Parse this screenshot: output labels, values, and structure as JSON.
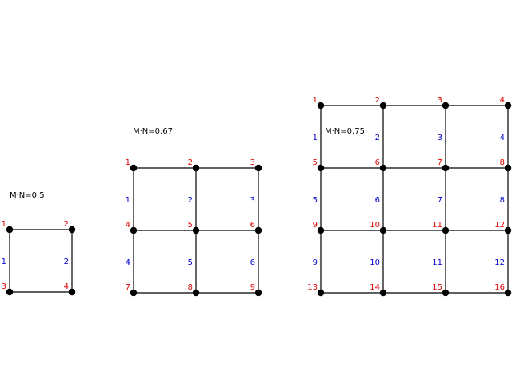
{
  "colors": {
    "background": "#ffffff",
    "edge": "#000000",
    "node": "#000000",
    "node_label": "#e00000",
    "edge_label": "#0000cc"
  },
  "diagrams": [
    {
      "caption": "M·N=0.5",
      "cols": 2,
      "rows": 2,
      "node_labels": [
        "1",
        "2",
        "3",
        "4"
      ],
      "edge_labels": [
        "1",
        "2"
      ]
    },
    {
      "caption": "M·N=0.67",
      "cols": 3,
      "rows": 3,
      "node_labels": [
        "1",
        "2",
        "3",
        "4",
        "5",
        "6",
        "7",
        "8",
        "9"
      ],
      "edge_labels": [
        "1",
        "2",
        "3",
        "4",
        "5",
        "6"
      ]
    },
    {
      "caption": "M·N=0.75",
      "cols": 4,
      "rows": 4,
      "node_labels": [
        "1",
        "2",
        "3",
        "4",
        "5",
        "6",
        "7",
        "8",
        "9",
        "10",
        "11",
        "12",
        "13",
        "14",
        "15",
        "16"
      ],
      "edge_labels": [
        "1",
        "2",
        "3",
        "4",
        "5",
        "6",
        "7",
        "8",
        "9",
        "10",
        "11",
        "12"
      ]
    }
  ]
}
